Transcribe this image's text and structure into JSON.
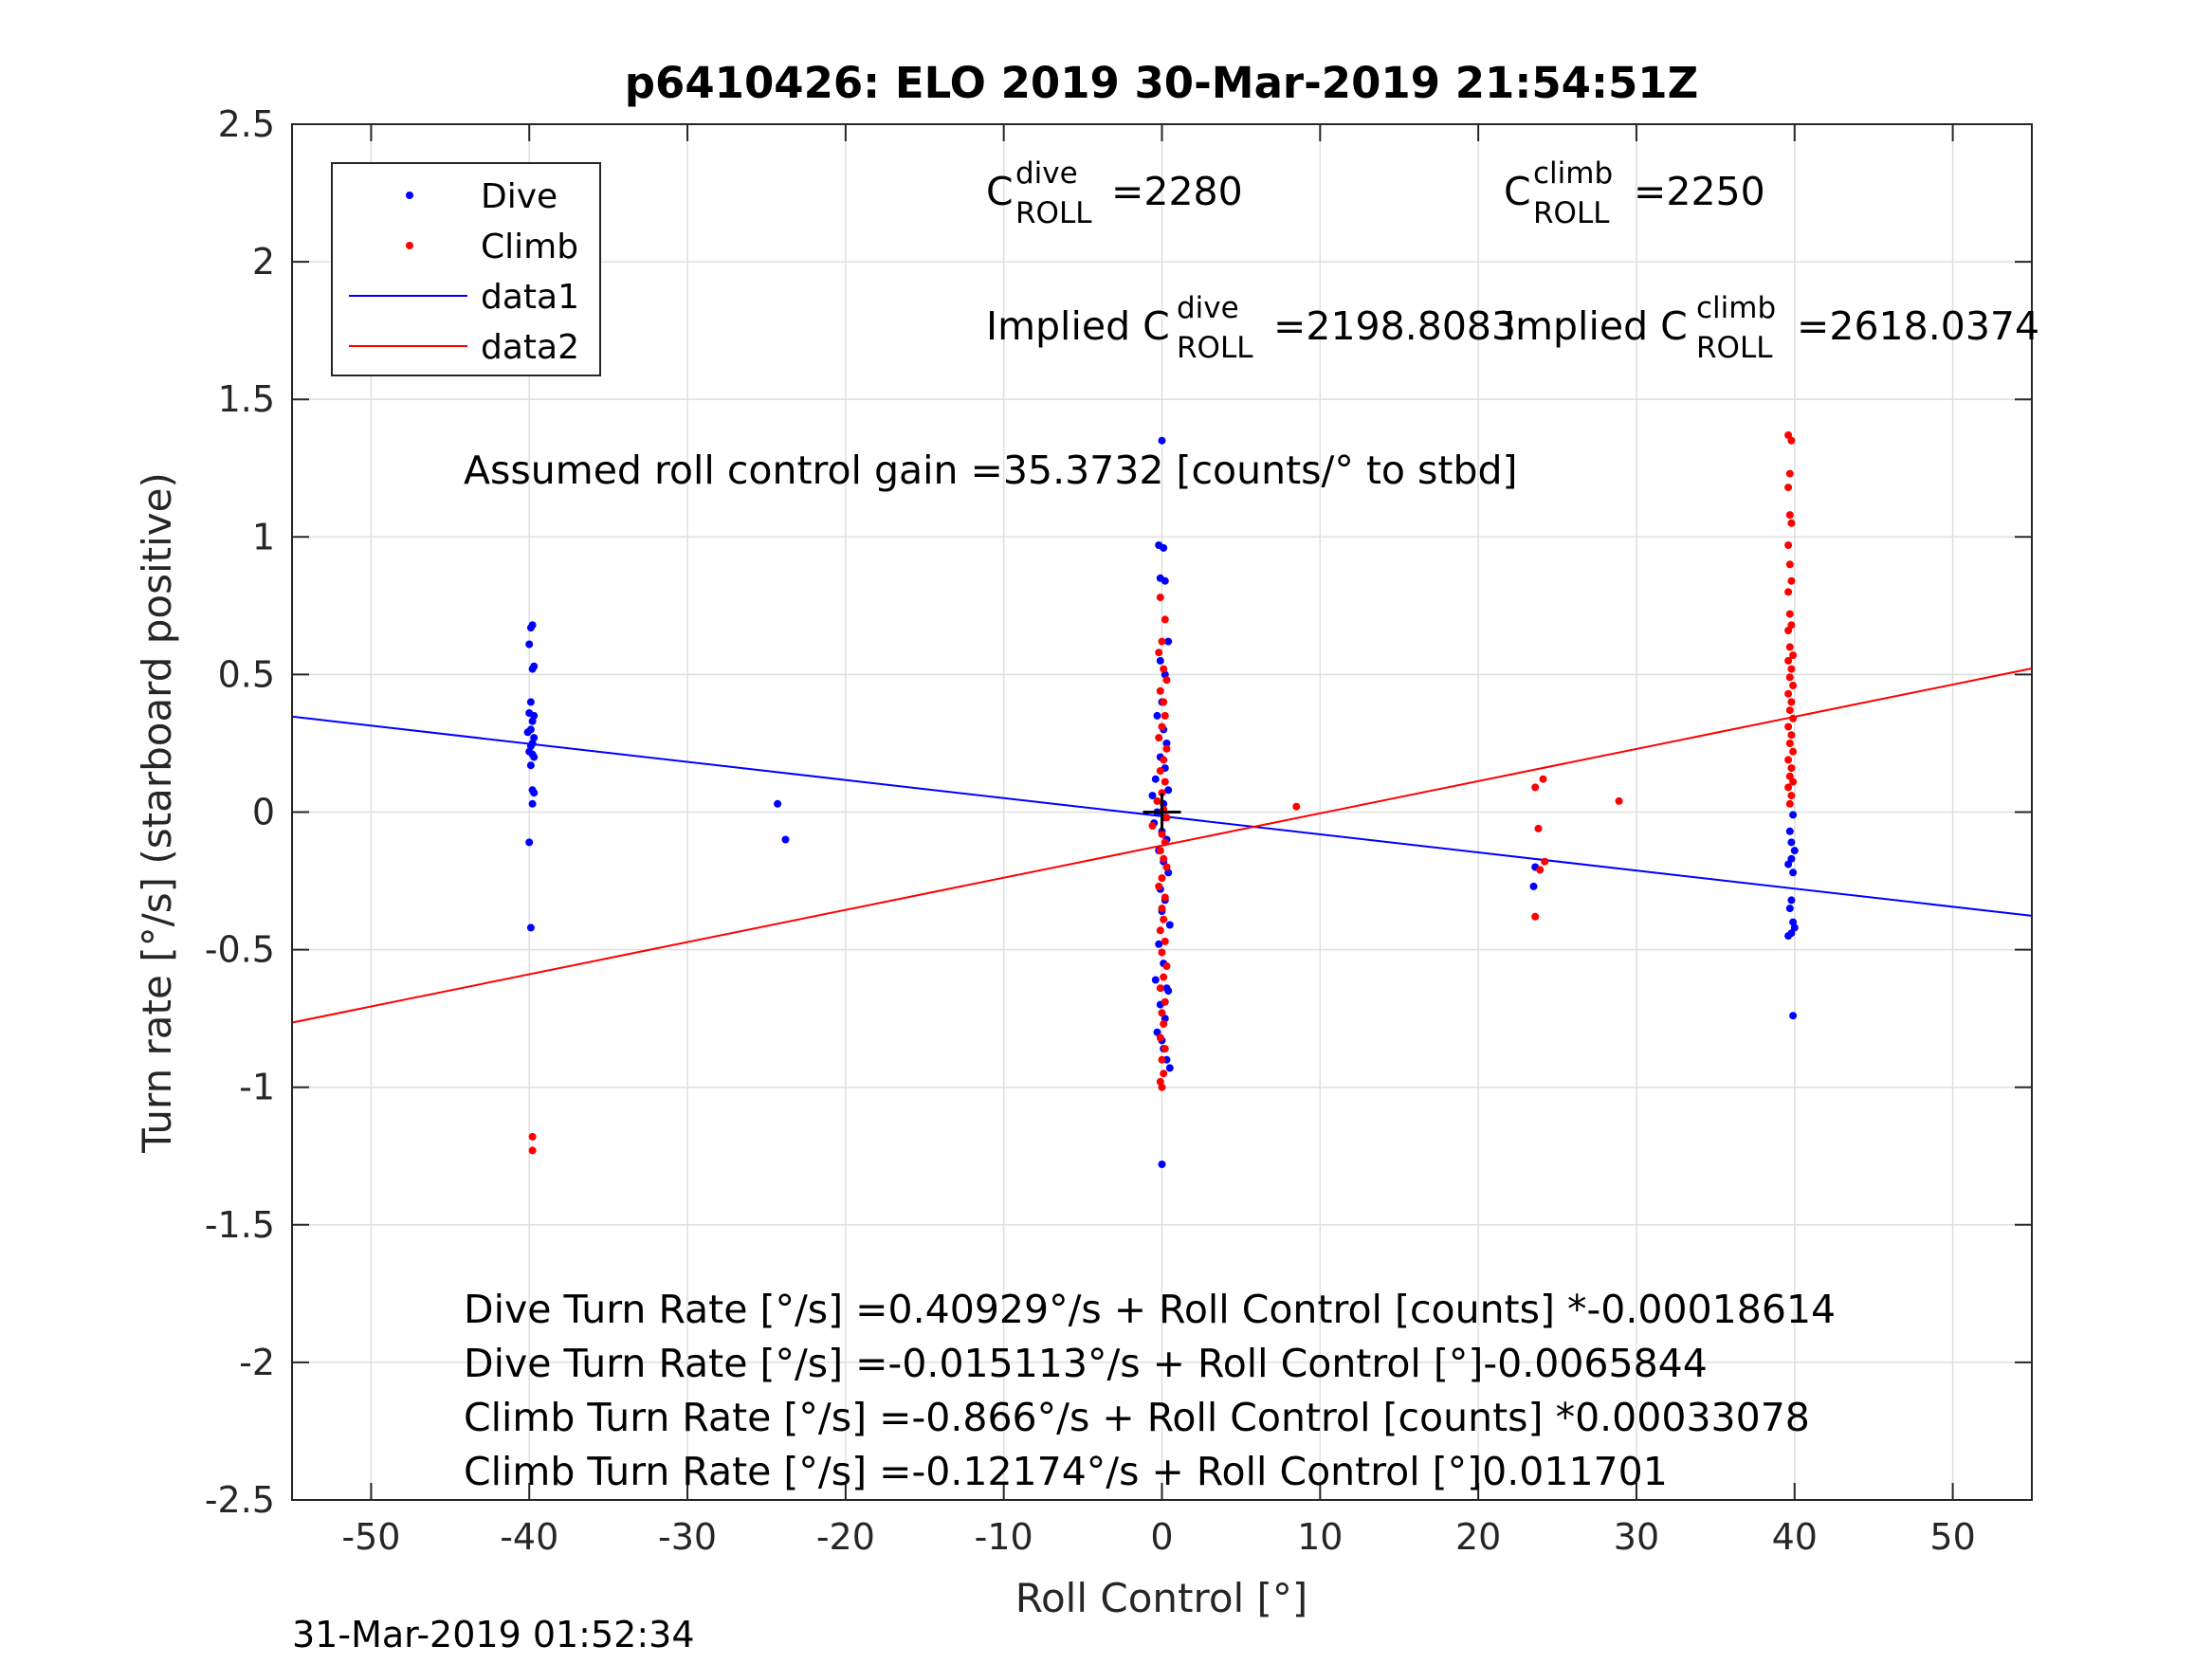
{
  "chart_data": {
    "type": "scatter",
    "title": "p6410426: ELO 2019 30-Mar-2019 21:54:51Z",
    "xlabel": "Roll Control [°]",
    "ylabel": "Turn rate [°/s] (starboard positive)",
    "xlim": [
      -55,
      55
    ],
    "ylim": [
      -2.5,
      2.5
    ],
    "grid": true,
    "legend_position": "top-left",
    "xticks": [
      -50,
      -40,
      -30,
      -20,
      -10,
      0,
      10,
      20,
      30,
      40,
      50
    ],
    "xtick_labels": [
      "-50",
      "-40",
      "-30",
      "-20",
      "-10",
      "0",
      "10",
      "20",
      "30",
      "40",
      "50"
    ],
    "yticks": [
      2.5,
      2,
      1.5,
      1,
      0.5,
      0,
      -0.5,
      -1,
      -1.5,
      -2,
      -2.5
    ],
    "ytick_labels": [
      "2.5",
      "2",
      "1.5",
      "1",
      "0.5",
      "0",
      "-0.5",
      "-1",
      "-1.5",
      "-2",
      "-2.5"
    ],
    "series": [
      {
        "name": "Dive",
        "kind": "points",
        "color": "#0000ff",
        "points": [
          [
            -39.8,
            0.68
          ],
          [
            -39.9,
            0.67
          ],
          [
            -40.0,
            0.61
          ],
          [
            -39.7,
            0.53
          ],
          [
            -39.8,
            0.52
          ],
          [
            -39.9,
            0.4
          ],
          [
            -40.0,
            0.36
          ],
          [
            -39.7,
            0.35
          ],
          [
            -39.8,
            0.33
          ],
          [
            -39.9,
            0.3
          ],
          [
            -40.1,
            0.29
          ],
          [
            -39.7,
            0.27
          ],
          [
            -39.8,
            0.25
          ],
          [
            -39.9,
            0.24
          ],
          [
            -40.0,
            0.22
          ],
          [
            -39.8,
            0.21
          ],
          [
            -39.7,
            0.2
          ],
          [
            -39.9,
            0.17
          ],
          [
            -39.8,
            0.08
          ],
          [
            -39.7,
            0.07
          ],
          [
            -39.8,
            0.03
          ],
          [
            -40.0,
            -0.11
          ],
          [
            -39.9,
            -0.42
          ],
          [
            -24.3,
            0.03
          ],
          [
            -23.8,
            -0.1
          ],
          [
            0.0,
            1.35
          ],
          [
            -0.2,
            0.97
          ],
          [
            0.1,
            0.96
          ],
          [
            -0.1,
            0.85
          ],
          [
            0.2,
            0.84
          ],
          [
            0.4,
            0.62
          ],
          [
            -0.1,
            0.55
          ],
          [
            0.2,
            0.5
          ],
          [
            0.0,
            0.4
          ],
          [
            -0.3,
            0.35
          ],
          [
            0.1,
            0.3
          ],
          [
            0.3,
            0.25
          ],
          [
            -0.1,
            0.2
          ],
          [
            0.2,
            0.16
          ],
          [
            -0.4,
            0.12
          ],
          [
            0.4,
            0.08
          ],
          [
            -0.6,
            0.06
          ],
          [
            0.1,
            0.03
          ],
          [
            -0.3,
            0.0
          ],
          [
            0.2,
            -0.02
          ],
          [
            -0.5,
            -0.04
          ],
          [
            0.0,
            -0.07
          ],
          [
            0.3,
            -0.1
          ],
          [
            -0.2,
            -0.14
          ],
          [
            0.1,
            -0.18
          ],
          [
            0.4,
            -0.22
          ],
          [
            -0.1,
            -0.28
          ],
          [
            0.2,
            -0.32
          ],
          [
            0.0,
            -0.36
          ],
          [
            0.5,
            -0.41
          ],
          [
            -0.2,
            -0.48
          ],
          [
            0.1,
            -0.55
          ],
          [
            -0.4,
            -0.61
          ],
          [
            0.3,
            -0.64
          ],
          [
            0.4,
            -0.65
          ],
          [
            -0.1,
            -0.7
          ],
          [
            0.2,
            -0.75
          ],
          [
            -0.3,
            -0.8
          ],
          [
            0.0,
            -0.83
          ],
          [
            0.1,
            -0.86
          ],
          [
            0.3,
            -0.9
          ],
          [
            0.5,
            -0.93
          ],
          [
            0.0,
            -1.28
          ],
          [
            23.6,
            -0.2
          ],
          [
            23.5,
            -0.27
          ],
          [
            39.9,
            -0.01
          ],
          [
            39.7,
            -0.07
          ],
          [
            39.8,
            -0.11
          ],
          [
            40.0,
            -0.14
          ],
          [
            39.8,
            -0.17
          ],
          [
            39.6,
            -0.19
          ],
          [
            39.9,
            -0.22
          ],
          [
            39.8,
            -0.32
          ],
          [
            39.7,
            -0.35
          ],
          [
            39.9,
            -0.4
          ],
          [
            40.0,
            -0.42
          ],
          [
            39.8,
            -0.44
          ],
          [
            39.6,
            -0.45
          ],
          [
            39.9,
            -0.74
          ]
        ]
      },
      {
        "name": "Climb",
        "kind": "points",
        "color": "#ff0000",
        "points": [
          [
            -39.8,
            -1.18
          ],
          [
            -39.8,
            -1.23
          ],
          [
            -0.1,
            0.78
          ],
          [
            0.2,
            0.7
          ],
          [
            0.0,
            0.62
          ],
          [
            -0.2,
            0.58
          ],
          [
            0.1,
            0.52
          ],
          [
            0.3,
            0.48
          ],
          [
            -0.1,
            0.44
          ],
          [
            0.1,
            0.4
          ],
          [
            0.2,
            0.35
          ],
          [
            0.0,
            0.31
          ],
          [
            -0.2,
            0.27
          ],
          [
            0.3,
            0.23
          ],
          [
            0.1,
            0.19
          ],
          [
            -0.1,
            0.15
          ],
          [
            0.2,
            0.11
          ],
          [
            0.0,
            0.07
          ],
          [
            -0.3,
            0.04
          ],
          [
            0.1,
            0.01
          ],
          [
            0.3,
            -0.02
          ],
          [
            -0.6,
            -0.05
          ],
          [
            0.0,
            -0.08
          ],
          [
            0.2,
            -0.11
          ],
          [
            -0.1,
            -0.14
          ],
          [
            0.1,
            -0.17
          ],
          [
            0.3,
            -0.2
          ],
          [
            0.0,
            -0.24
          ],
          [
            -0.2,
            -0.27
          ],
          [
            0.2,
            -0.31
          ],
          [
            0.0,
            -0.35
          ],
          [
            0.1,
            -0.39
          ],
          [
            -0.1,
            -0.43
          ],
          [
            0.2,
            -0.47
          ],
          [
            0.0,
            -0.51
          ],
          [
            0.3,
            -0.56
          ],
          [
            0.1,
            -0.6
          ],
          [
            -0.1,
            -0.64
          ],
          [
            0.2,
            -0.69
          ],
          [
            0.0,
            -0.73
          ],
          [
            0.1,
            -0.77
          ],
          [
            -0.1,
            -0.82
          ],
          [
            0.2,
            -0.86
          ],
          [
            0.0,
            -0.9
          ],
          [
            0.1,
            -0.95
          ],
          [
            -0.1,
            -0.98
          ],
          [
            0.0,
            -1.0
          ],
          [
            8.5,
            0.02
          ],
          [
            23.6,
            0.09
          ],
          [
            24.1,
            0.12
          ],
          [
            23.8,
            -0.06
          ],
          [
            24.2,
            -0.18
          ],
          [
            23.9,
            -0.21
          ],
          [
            23.6,
            -0.38
          ],
          [
            28.9,
            0.04
          ],
          [
            39.6,
            1.37
          ],
          [
            39.8,
            1.35
          ],
          [
            39.7,
            1.23
          ],
          [
            39.6,
            1.18
          ],
          [
            39.7,
            1.08
          ],
          [
            39.8,
            1.05
          ],
          [
            39.6,
            0.97
          ],
          [
            39.7,
            0.9
          ],
          [
            39.8,
            0.84
          ],
          [
            39.6,
            0.8
          ],
          [
            39.7,
            0.72
          ],
          [
            39.8,
            0.68
          ],
          [
            39.6,
            0.66
          ],
          [
            39.7,
            0.6
          ],
          [
            39.9,
            0.57
          ],
          [
            39.6,
            0.55
          ],
          [
            39.8,
            0.52
          ],
          [
            39.7,
            0.49
          ],
          [
            39.9,
            0.46
          ],
          [
            39.6,
            0.43
          ],
          [
            39.8,
            0.4
          ],
          [
            39.7,
            0.37
          ],
          [
            39.9,
            0.34
          ],
          [
            39.6,
            0.31
          ],
          [
            39.8,
            0.28
          ],
          [
            39.7,
            0.25
          ],
          [
            39.9,
            0.22
          ],
          [
            39.6,
            0.19
          ],
          [
            39.8,
            0.16
          ],
          [
            39.7,
            0.13
          ],
          [
            39.9,
            0.11
          ],
          [
            39.6,
            0.09
          ],
          [
            39.8,
            0.06
          ],
          [
            39.7,
            0.03
          ]
        ]
      },
      {
        "name": "data1",
        "kind": "line",
        "color": "#0000ff",
        "points": [
          [
            -55,
            0.347
          ],
          [
            55,
            -0.377
          ]
        ]
      },
      {
        "name": "data2",
        "kind": "line",
        "color": "#ff0000",
        "points": [
          [
            -55,
            -0.765
          ],
          [
            55,
            0.522
          ]
        ]
      }
    ],
    "marker_plus": {
      "x": 0,
      "y": 0,
      "color": "#000000"
    },
    "annotations": {
      "c_dive": {
        "base": "C",
        "sup": "dive",
        "sub": "ROLL",
        "value": "=2280"
      },
      "c_climb": {
        "base": "C",
        "sup": "climb",
        "sub": "ROLL",
        "value": "=2250"
      },
      "implied_dive": {
        "prefix": "Implied C",
        "sup": "dive",
        "sub": "ROLL",
        "value": "=2198.8083"
      },
      "implied_climb": {
        "prefix": "Implied C",
        "sup": "climb",
        "sub": "ROLL",
        "value": "=2618.0374"
      },
      "gain": "Assumed roll control gain =35.3732 [counts/° to stbd]",
      "eq1": "Dive Turn Rate [°/s] =0.40929°/s + Roll Control [counts] *-0.00018614",
      "eq2": "Dive Turn Rate [°/s] =-0.015113°/s + Roll Control [°]-0.0065844",
      "eq3": "Climb Turn Rate [°/s] =-0.866°/s + Roll Control [counts] *0.00033078",
      "eq4": "Climb Turn Rate [°/s] =-0.12174°/s + Roll Control [°]0.011701"
    },
    "legend": [
      {
        "label": "Dive",
        "kind": "point",
        "color": "#0000ff"
      },
      {
        "label": "Climb",
        "kind": "point",
        "color": "#ff0000"
      },
      {
        "label": "data1",
        "kind": "line",
        "color": "#0000ff"
      },
      {
        "label": "data2",
        "kind": "line",
        "color": "#ff0000"
      }
    ]
  },
  "footer_timestamp": "31-Mar-2019 01:52:34"
}
